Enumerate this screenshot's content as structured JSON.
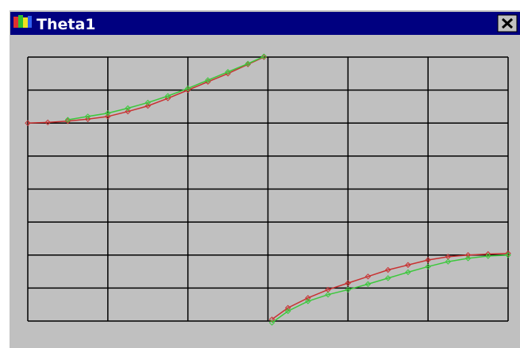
{
  "window": {
    "title": "Theta1"
  },
  "chart_data": {
    "type": "line",
    "x": [
      0,
      0.25,
      0.5,
      0.75,
      1,
      1.25,
      1.5,
      1.75,
      2,
      2.25,
      2.5,
      2.75,
      2.95,
      3,
      3.05,
      3.25,
      3.5,
      3.75,
      4,
      4.25,
      4.5,
      4.75,
      5,
      5.25,
      5.5,
      5.75,
      6
    ],
    "series": [
      {
        "color": "#c83232",
        "values": [
          2.0,
          2.02,
          2.06,
          2.12,
          2.2,
          2.35,
          2.52,
          2.75,
          3.0,
          3.25,
          3.5,
          3.78,
          4.0,
          null,
          -3.95,
          -3.6,
          -3.3,
          -3.05,
          -2.85,
          -2.65,
          -2.45,
          -2.3,
          -2.15,
          -2.05,
          -2.0,
          -1.97,
          -1.95
        ]
      },
      {
        "color": "#3cc83c",
        "values": [
          null,
          null,
          2.1,
          2.2,
          2.3,
          2.45,
          2.62,
          2.82,
          3.05,
          3.3,
          3.55,
          3.8,
          4.02,
          null,
          -4.05,
          -3.7,
          -3.4,
          -3.2,
          -3.05,
          -2.88,
          -2.7,
          -2.52,
          -2.35,
          -2.2,
          -2.1,
          -2.03,
          -2.0
        ]
      }
    ],
    "xlim": [
      0,
      6
    ],
    "ylim": [
      -4,
      4
    ],
    "xticks": [
      0,
      1,
      2,
      3,
      4,
      5,
      6
    ],
    "yticks": [
      -4,
      -3,
      -2,
      -1,
      0,
      1,
      2,
      3,
      4
    ],
    "grid": true
  }
}
